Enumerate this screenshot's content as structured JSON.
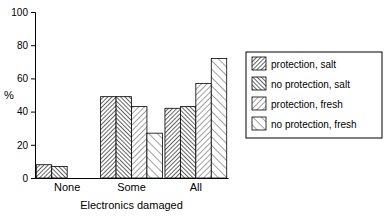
{
  "chart_data": {
    "type": "bar",
    "x_label": "Electronics damaged",
    "y_label": "%",
    "categories": [
      "None",
      "Some",
      "All"
    ],
    "series": [
      {
        "name": "protection, salt",
        "color": "#222222",
        "values": [
          8,
          49,
          42
        ]
      },
      {
        "name": "no protection, salt",
        "color": "#222222",
        "values": [
          7,
          49,
          43
        ]
      },
      {
        "name": "protection, fresh",
        "color": "#444444",
        "values": [
          0,
          43,
          57
        ]
      },
      {
        "name": "no protection, fresh",
        "color": "#444444",
        "values": [
          0,
          27,
          72
        ]
      }
    ],
    "ylim": [
      0,
      100
    ],
    "yticks": [
      0,
      20,
      40,
      60,
      80,
      100
    ],
    "legend": "right"
  }
}
